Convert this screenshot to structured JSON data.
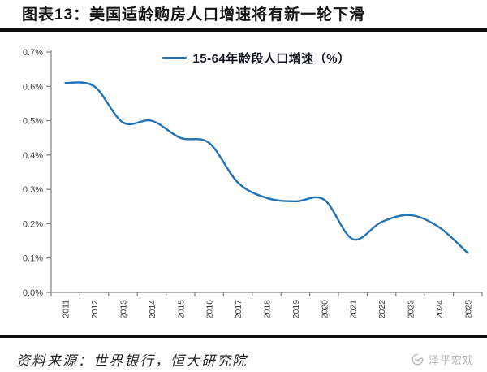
{
  "title": "图表13：美国适龄购房人口增速将有新一轮下滑",
  "footer": {
    "source": "资料来源：世界银行，恒大研究院",
    "watermark": "泽平宏观"
  },
  "colors": {
    "line": "#2272B5",
    "axis": "#808080",
    "tick_label": "#404040",
    "rule": "#0d0d0d",
    "watermark_gray": "#b3b3b3"
  },
  "chart_data": {
    "type": "line",
    "title": "",
    "legend": "15-64年龄段人口增速（%）",
    "legend_position": "top-center",
    "x": [
      "2011",
      "2012",
      "2013",
      "2014",
      "2015",
      "2016",
      "2017",
      "2018",
      "2019",
      "2020",
      "2021",
      "2022",
      "2023",
      "2024",
      "2025"
    ],
    "values": [
      0.61,
      0.6,
      0.495,
      0.5,
      0.45,
      0.435,
      0.32,
      0.275,
      0.265,
      0.27,
      0.155,
      0.205,
      0.225,
      0.19,
      0.115
    ],
    "unit": "%",
    "ylim": [
      0.0,
      0.7
    ],
    "ytick_labels": [
      "0.0%",
      "0.1%",
      "0.2%",
      "0.3%",
      "0.4%",
      "0.5%",
      "0.6%",
      "0.7%"
    ],
    "grid": false,
    "smooth": true,
    "line_color": "#2272B5"
  }
}
